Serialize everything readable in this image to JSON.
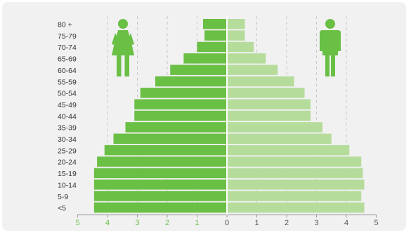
{
  "chart_data": {
    "type": "bar",
    "orientation": "horizontal",
    "layout": "population-pyramid",
    "categories": [
      "80 +",
      "75-79",
      "70-74",
      "65-69",
      "60-64",
      "55-59",
      "50-54",
      "45-49",
      "40-44",
      "35-39",
      "30-34",
      "25-29",
      "20-24",
      "15-19",
      "10-14",
      "5-9",
      "<5"
    ],
    "series": [
      {
        "side": "left",
        "icon": "female-icon",
        "color": "#6abf45",
        "values": [
          0.8,
          0.75,
          1.0,
          1.45,
          1.9,
          2.4,
          2.9,
          3.1,
          3.1,
          3.4,
          3.8,
          4.1,
          4.35,
          4.45,
          4.45,
          4.45,
          4.45
        ]
      },
      {
        "side": "right",
        "icon": "male-icon",
        "color": "#b6dc9c",
        "values": [
          0.6,
          0.6,
          0.9,
          1.3,
          1.7,
          2.25,
          2.6,
          2.8,
          2.8,
          3.2,
          3.5,
          4.1,
          4.5,
          4.55,
          4.6,
          4.5,
          4.6
        ]
      }
    ],
    "xlim": [
      -5,
      5
    ],
    "x_ticks": [
      {
        "label": "5",
        "value": -5,
        "color": "#6abf45"
      },
      {
        "label": "4",
        "value": -4,
        "color": "#6abf45"
      },
      {
        "label": "3",
        "value": -3,
        "color": "#6abf45"
      },
      {
        "label": "2",
        "value": -2,
        "color": "#6abf45"
      },
      {
        "label": "1",
        "value": -1,
        "color": "#6abf45"
      },
      {
        "label": "0",
        "value": 0,
        "color": "#555555"
      },
      {
        "label": "1",
        "value": 1,
        "color": "#555555"
      },
      {
        "label": "2",
        "value": 2,
        "color": "#555555"
      },
      {
        "label": "3",
        "value": 3,
        "color": "#555555"
      },
      {
        "label": "4",
        "value": 4,
        "color": "#555555"
      },
      {
        "label": "5",
        "value": 5,
        "color": "#555555"
      }
    ],
    "gridlines": {
      "style": "dashed",
      "color": "#c8c8c8",
      "at": [
        -4,
        -3,
        -2,
        -1,
        1,
        2,
        3,
        4
      ]
    },
    "title": "",
    "xlabel": "",
    "ylabel": ""
  }
}
